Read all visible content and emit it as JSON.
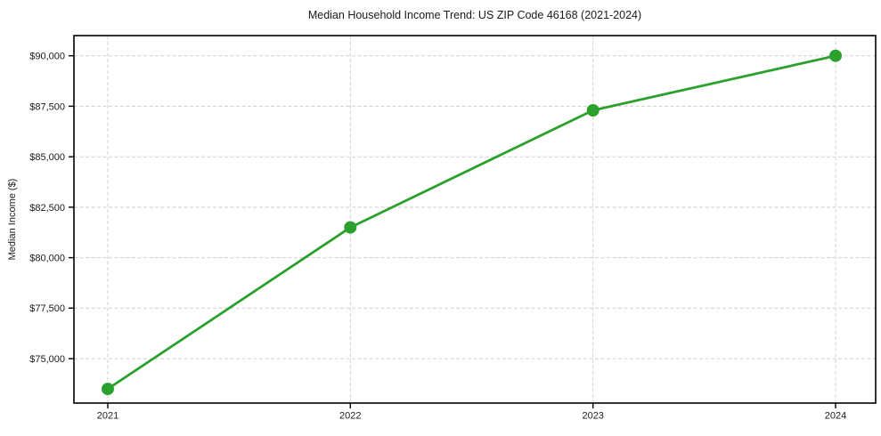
{
  "chart_data": {
    "type": "line",
    "title": "Median Household Income Trend: US ZIP Code 46168 (2021-2024)",
    "xlabel": "",
    "ylabel": "Median Income ($)",
    "categories": [
      "2021",
      "2022",
      "2023",
      "2024"
    ],
    "series": [
      {
        "name": "Median Household Income",
        "values": [
          73500,
          81500,
          87300,
          90000
        ]
      }
    ],
    "ylim": [
      72800,
      91000
    ],
    "y_ticks": [
      {
        "value": 75000,
        "label": "$75,000"
      },
      {
        "value": 77500,
        "label": "$77,500"
      },
      {
        "value": 80000,
        "label": "$80,000"
      },
      {
        "value": 82500,
        "label": "$82,500"
      },
      {
        "value": 85000,
        "label": "$85,000"
      },
      {
        "value": 87500,
        "label": "$87,500"
      },
      {
        "value": 90000,
        "label": "$90,000"
      }
    ],
    "grid": true,
    "legend": "none",
    "marker": "circle",
    "colors": {
      "line": "#2ca02c",
      "marker": "#2ca02c",
      "grid": "#d0d0d0",
      "spine": "#000000",
      "text": "#1a1a1a",
      "background": "#ffffff"
    }
  }
}
